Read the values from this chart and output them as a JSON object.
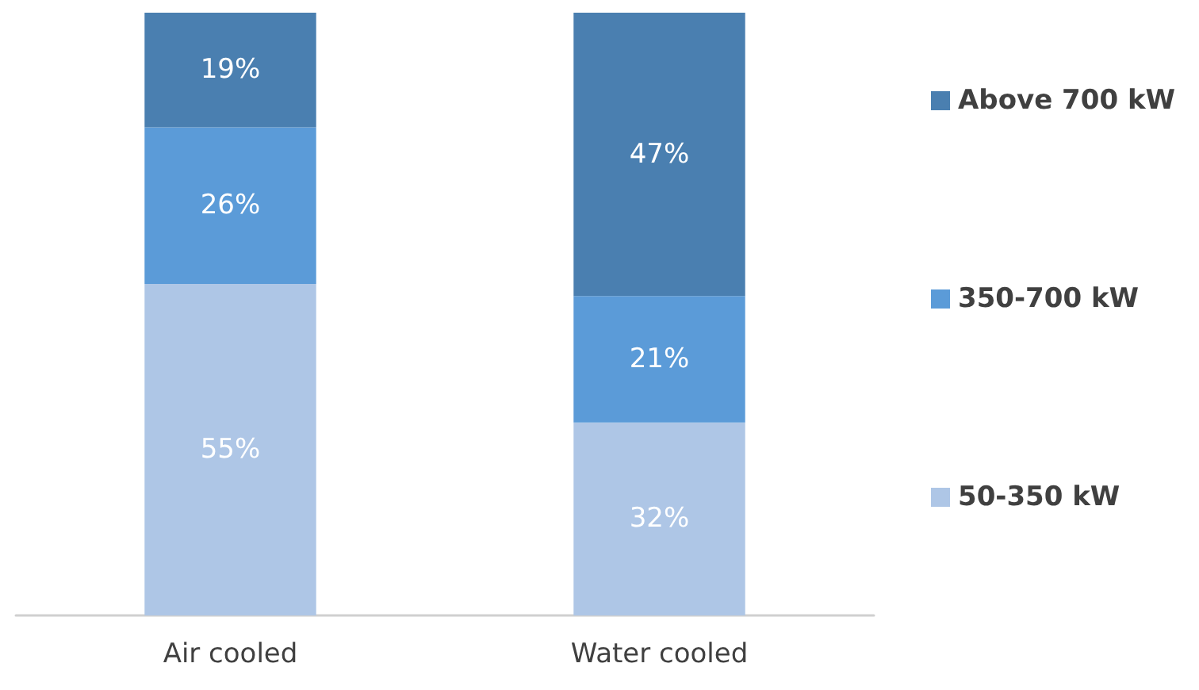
{
  "chart_data": {
    "type": "bar",
    "stacked": true,
    "legend": "right",
    "categories": [
      "Air cooled",
      "Water cooled"
    ],
    "series": [
      {
        "name": "50-350 kW",
        "color": "#aec6e6",
        "values": [
          55,
          32
        ],
        "value_labels": [
          "55%",
          "32%"
        ]
      },
      {
        "name": "350-700 kW",
        "color": "#5b9bd8",
        "values": [
          26,
          21
        ],
        "value_labels": [
          "26%",
          "21%"
        ]
      },
      {
        "name": "Above 700 kW",
        "color": "#4a7fb0",
        "values": [
          19,
          47
        ],
        "value_labels": [
          "19%",
          "47%"
        ]
      }
    ]
  }
}
